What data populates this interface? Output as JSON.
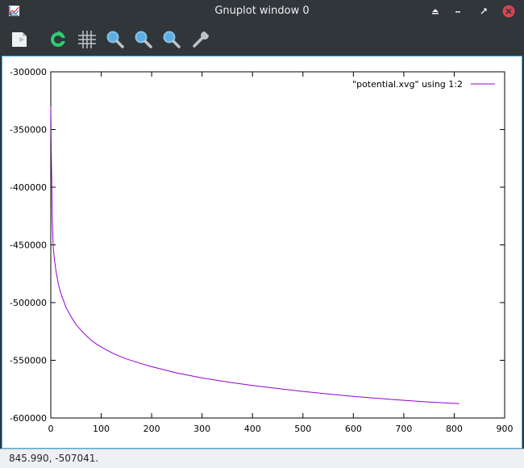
{
  "window": {
    "title": "Gnuplot window 0",
    "controls": [
      "keep-above",
      "minimize",
      "restore",
      "close"
    ],
    "close_color": "#da4453"
  },
  "toolbar": {
    "tools": [
      {
        "icon": "export-icon"
      },
      {
        "icon": "replot-icon"
      },
      {
        "icon": "grid-icon"
      },
      {
        "icon": "zoom-previous-icon"
      },
      {
        "icon": "zoom-next-icon"
      },
      {
        "icon": "unzoom-icon"
      },
      {
        "icon": "settings-icon"
      }
    ]
  },
  "chart_data": {
    "type": "line",
    "title": "",
    "xlabel": "",
    "ylabel": "",
    "xlim": [
      0,
      900
    ],
    "ylim": [
      -600000,
      -300000
    ],
    "xticks": [
      0,
      100,
      200,
      300,
      400,
      500,
      600,
      700,
      800,
      900
    ],
    "yticks": [
      -300000,
      -350000,
      -400000,
      -450000,
      -500000,
      -550000,
      -600000
    ],
    "xtick_labels": [
      "0",
      "100",
      "200",
      "300",
      "400",
      "500",
      "600",
      "700",
      "800",
      "900"
    ],
    "ytick_labels": [
      "-300000",
      "-350000",
      "-400000",
      "-450000",
      "-500000",
      "-550000",
      "-600000"
    ],
    "grid": false,
    "legend": "top-right",
    "series": [
      {
        "name": "\"potential.xvg\" using 1:2",
        "color": "#9400d3",
        "x": [
          0,
          1,
          2,
          3,
          5,
          7,
          10,
          15,
          20,
          25,
          30,
          40,
          50,
          60,
          70,
          80,
          90,
          100,
          125,
          150,
          175,
          200,
          250,
          300,
          350,
          400,
          450,
          500,
          550,
          600,
          650,
          700,
          750,
          810
        ],
        "y": [
          -330000,
          -370000,
          -400000,
          -430000,
          -452000,
          -462000,
          -472000,
          -484000,
          -492000,
          -498000,
          -504000,
          -512000,
          -519000,
          -524000,
          -528500,
          -532500,
          -535800,
          -538500,
          -544500,
          -548800,
          -552300,
          -555500,
          -561000,
          -565300,
          -568800,
          -571800,
          -574500,
          -577000,
          -579200,
          -581300,
          -583100,
          -584700,
          -586200,
          -587600
        ]
      }
    ]
  },
  "status": {
    "text": "845.990, -507041."
  }
}
